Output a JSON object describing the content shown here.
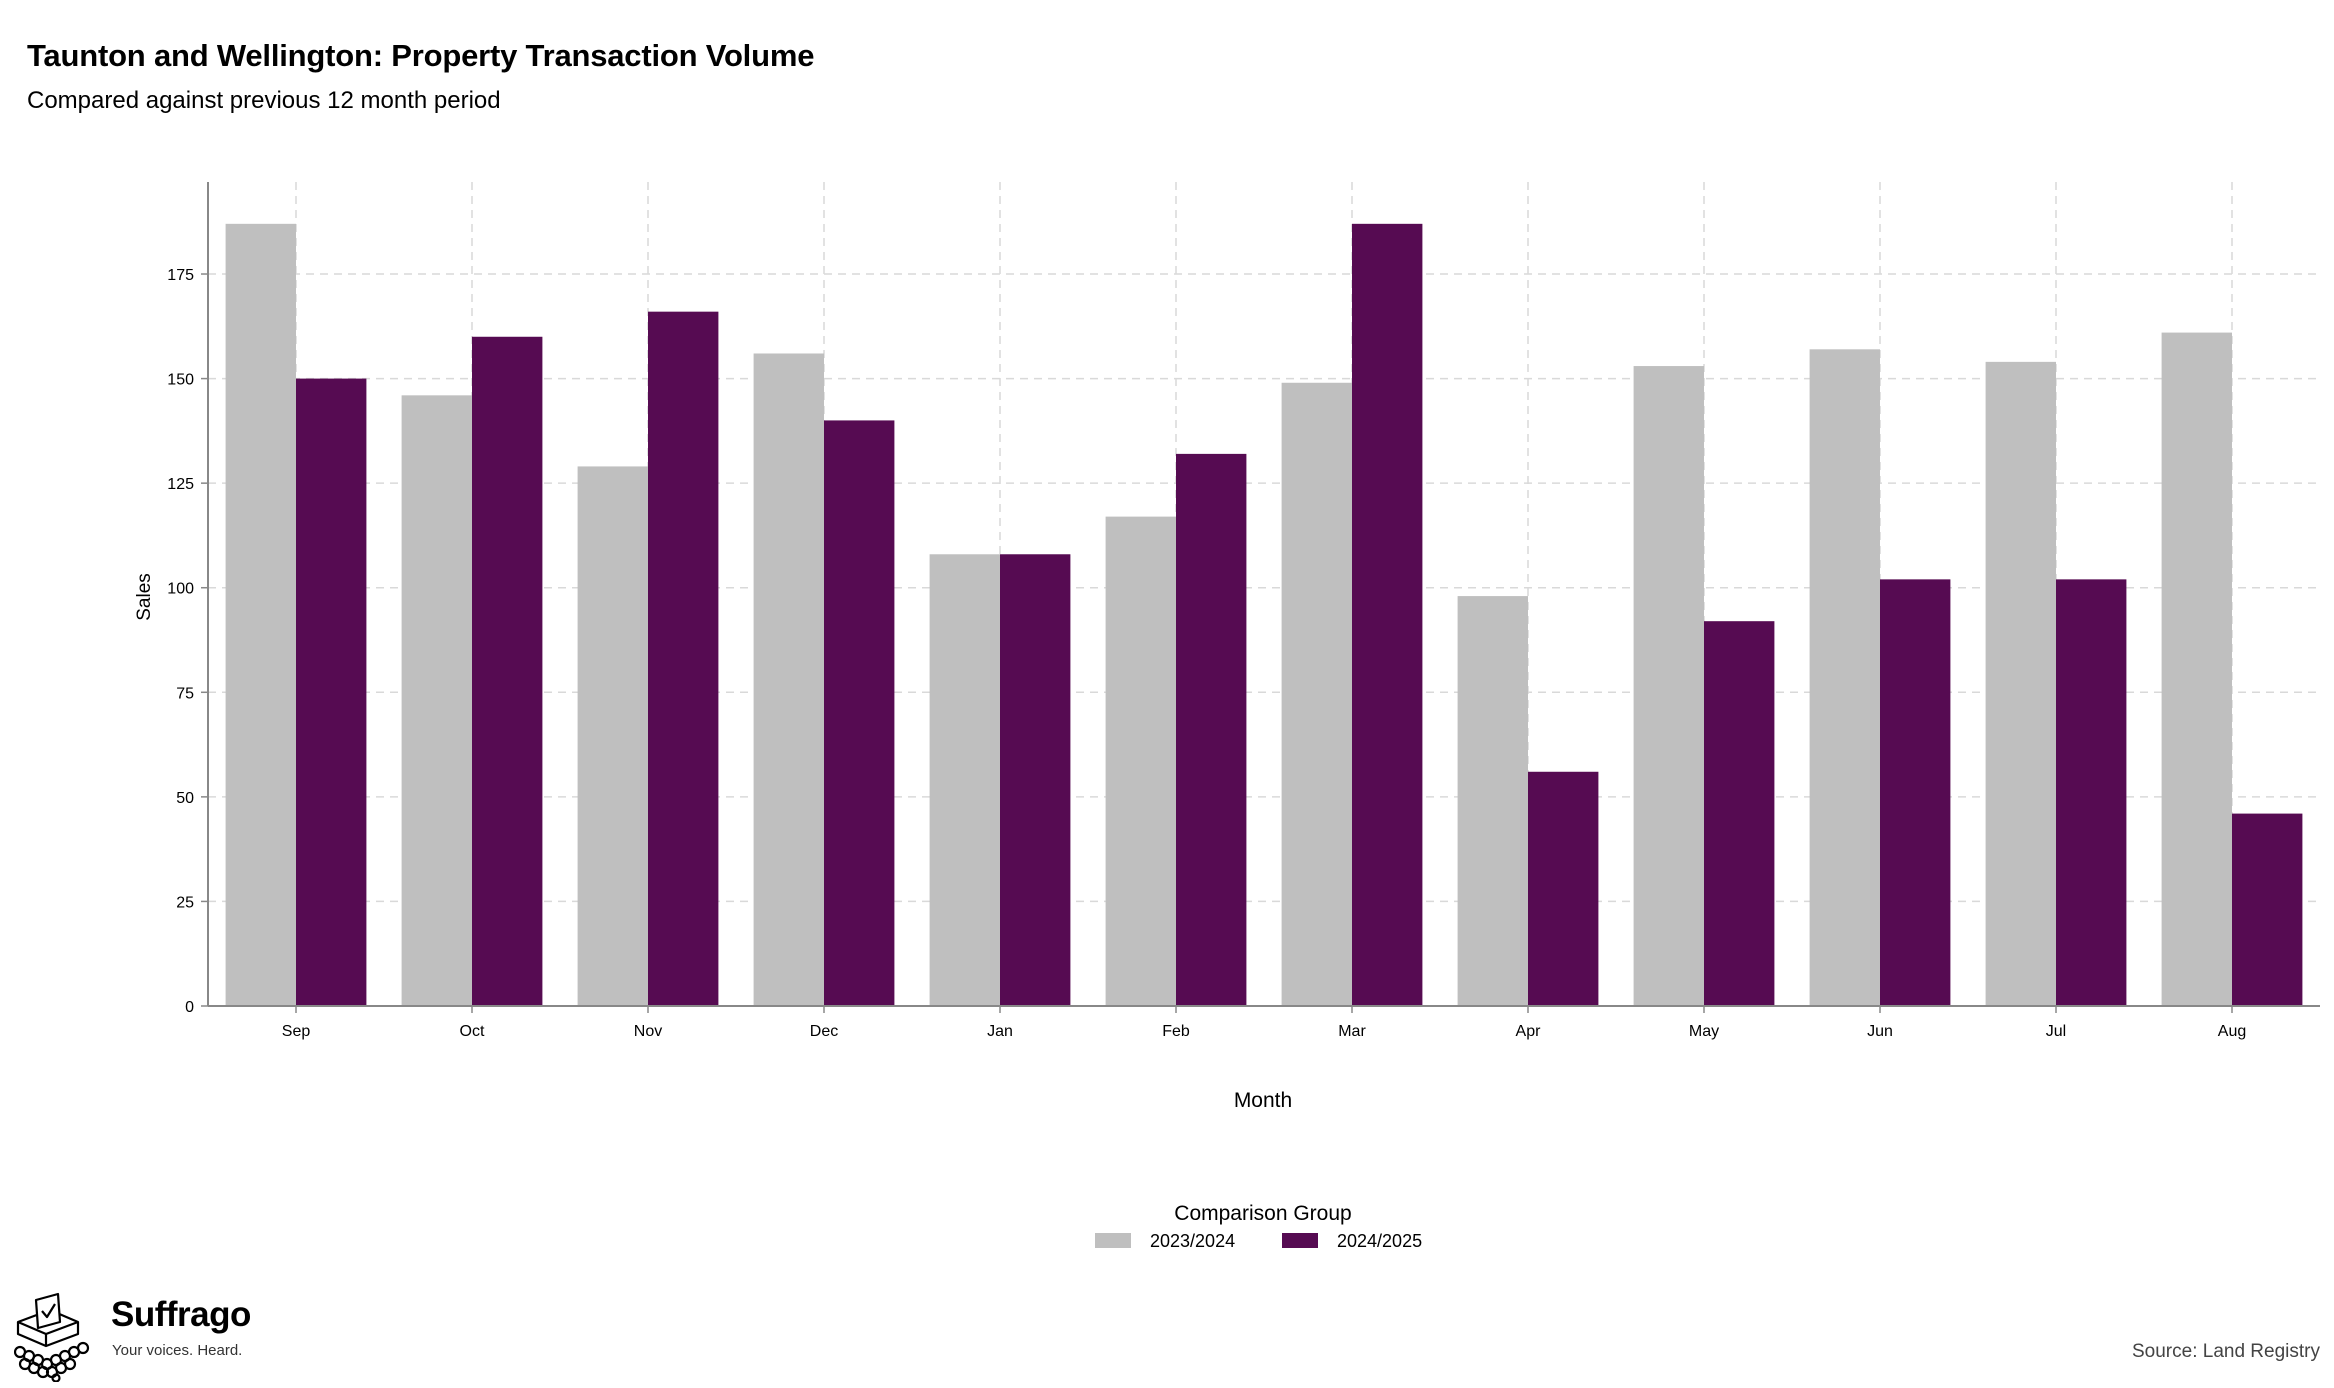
{
  "header": {
    "title": "Taunton and Wellington: Property Transaction Volume",
    "subtitle": "Compared against previous 12 month period"
  },
  "chart_data": {
    "type": "bar",
    "categories": [
      "Sep",
      "Oct",
      "Nov",
      "Dec",
      "Jan",
      "Feb",
      "Mar",
      "Apr",
      "May",
      "Jun",
      "Jul",
      "Aug"
    ],
    "series": [
      {
        "name": "2023/2024",
        "color": "#bfbfbf",
        "values": [
          187,
          146,
          129,
          156,
          108,
          117,
          149,
          98,
          153,
          157,
          154,
          161
        ]
      },
      {
        "name": "2024/2025",
        "color": "#560b52",
        "values": [
          150,
          160,
          166,
          140,
          108,
          132,
          187,
          56,
          92,
          102,
          102,
          46
        ]
      }
    ],
    "xlabel": "Month",
    "ylabel": "Sales",
    "ylim": [
      0,
      197
    ],
    "yticks": [
      0,
      25,
      50,
      75,
      100,
      125,
      150,
      175
    ],
    "grid": true,
    "legend": {
      "title": "Comparison Group",
      "position": "bottom-center"
    }
  },
  "footer": {
    "brand_name": "Suffrago",
    "brand_tagline": "Your voices. Heard.",
    "source": "Source: Land Registry"
  },
  "icons": {
    "logo": "ballot-box-icon"
  }
}
